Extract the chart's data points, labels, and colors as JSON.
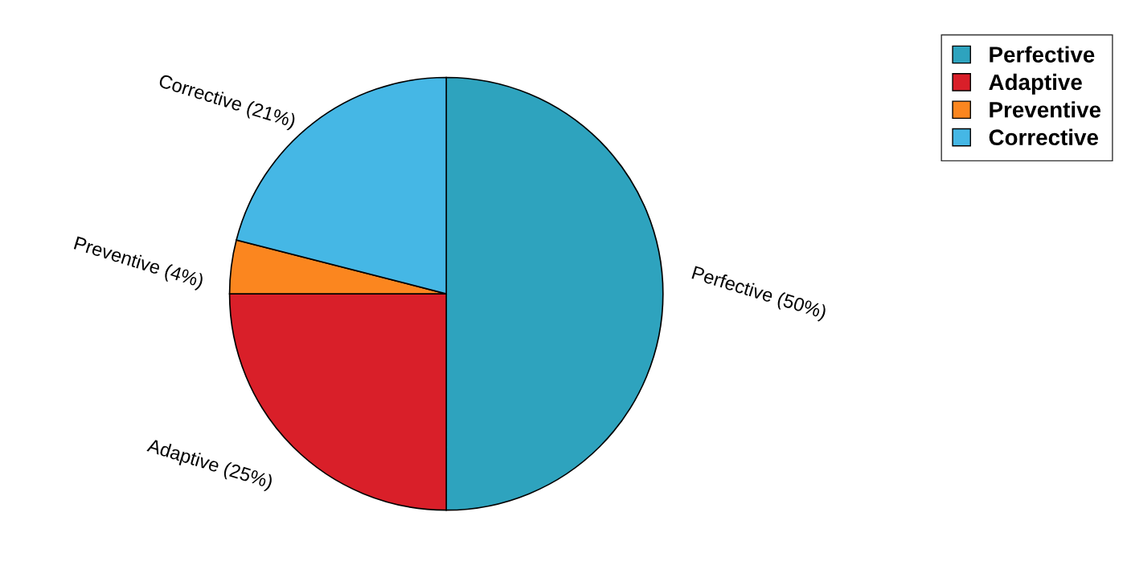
{
  "chart_data": {
    "type": "pie",
    "categories": [
      "Perfective",
      "Adaptive",
      "Preventive",
      "Corrective"
    ],
    "values": [
      50,
      25,
      4,
      21
    ],
    "colors": [
      "#2ea3be",
      "#d91f29",
      "#fb861f",
      "#45b7e5"
    ],
    "value_labels": [
      "Perfective (50%)",
      "Adaptive (25%)",
      "Preventive (4%)",
      "Corrective (21%)"
    ],
    "legend": "top right"
  }
}
